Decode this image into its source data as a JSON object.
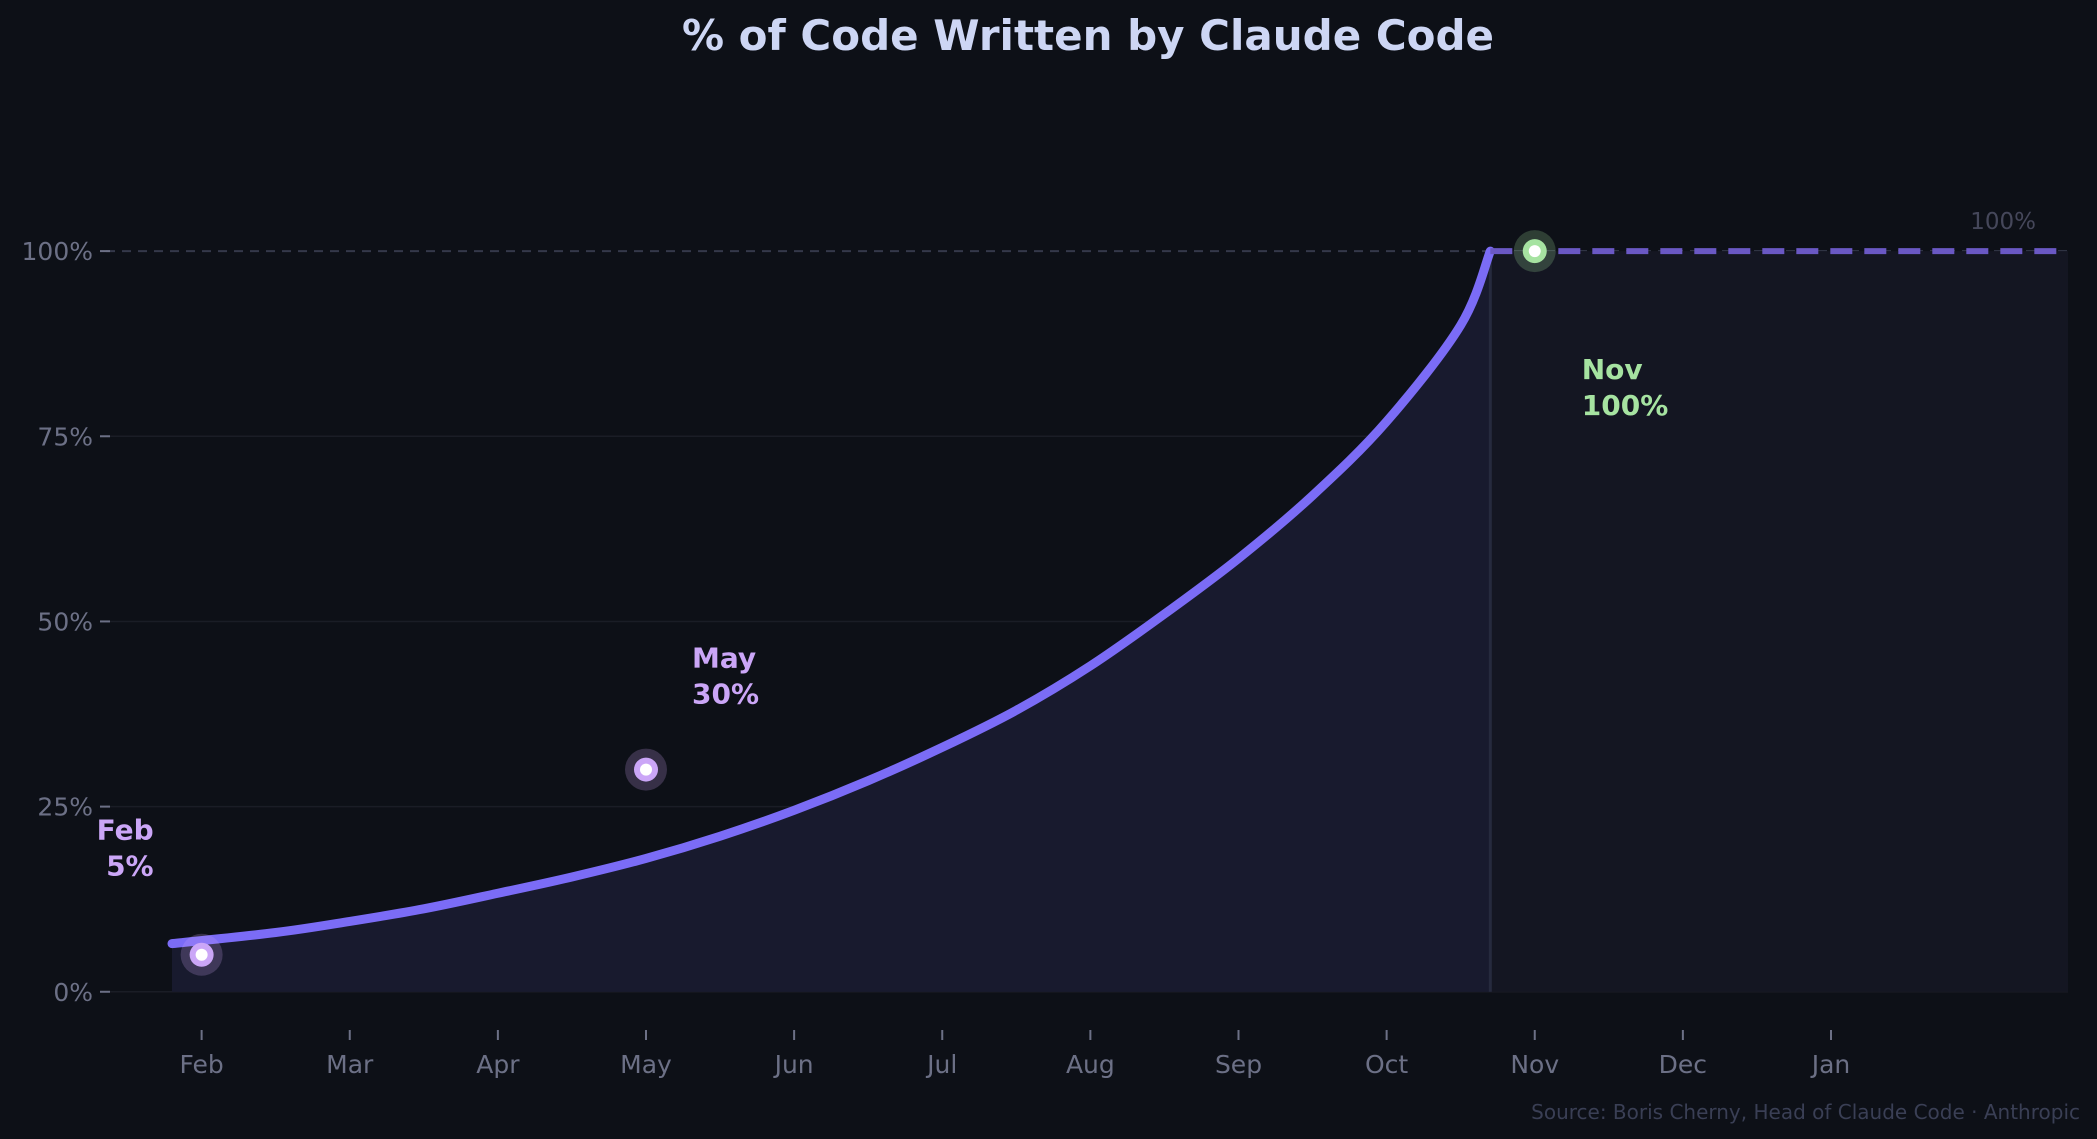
{
  "chart_data": {
    "type": "line",
    "title": "% of Code Written by Claude Code",
    "xlabel": "",
    "ylabel": "",
    "x_tick_labels": [
      "Feb",
      "Mar",
      "Apr",
      "May",
      "Jun",
      "Jul",
      "Aug",
      "Sep",
      "Oct",
      "Nov",
      "Dec",
      "Jan"
    ],
    "y_ticks": [
      0,
      25,
      50,
      75,
      100
    ],
    "y_tick_labels": [
      "0%",
      "25%",
      "50%",
      "75%",
      "100%"
    ],
    "ylim": [
      -3,
      115
    ],
    "xlim": [
      -0.2,
      12.6
    ],
    "grid": "horizontal",
    "curve": {
      "x": [
        -0.2,
        0.5,
        1,
        1.5,
        2,
        2.5,
        3,
        3.5,
        4,
        4.5,
        5,
        5.5,
        6,
        6.5,
        7,
        7.5,
        8,
        8.5,
        8.7
      ],
      "y": [
        6.5,
        8,
        9.5,
        11.2,
        13.3,
        15.5,
        18,
        21,
        24.5,
        28.5,
        33,
        38,
        44,
        51,
        58.5,
        67,
        77,
        90,
        100
      ]
    },
    "projection": {
      "x": [
        8.7,
        12.6
      ],
      "y": [
        100,
        100
      ],
      "label": "100%"
    },
    "milestones": [
      {
        "x": 0,
        "y": 5,
        "month": "Feb",
        "value_label": "5%",
        "color": "#e2c6ff"
      },
      {
        "x": 3,
        "y": 30,
        "month": "May",
        "value_label": "30%",
        "color": "#e2c6ff"
      },
      {
        "x": 9,
        "y": 100,
        "month": "Nov",
        "value_label": "100%",
        "color": "#a6e3a1"
      }
    ],
    "source": "Source: Boris Cherny, Head of Claude Code · Anthropic"
  },
  "colors": {
    "background": "#0d1017",
    "title": "#cdd6f4",
    "line": "#7b6cf6",
    "fill": "#181a2e",
    "future_fill": "#141622",
    "projection": "#6a58c4",
    "tick": "#6c7086",
    "grid": "#1a1d26",
    "ceiling_grid": "#34384a",
    "milestone_purple": "#cba6f7",
    "milestone_green": "#a6e3a1",
    "source": "#3a3f55",
    "ceiling_label": "#45475a"
  }
}
